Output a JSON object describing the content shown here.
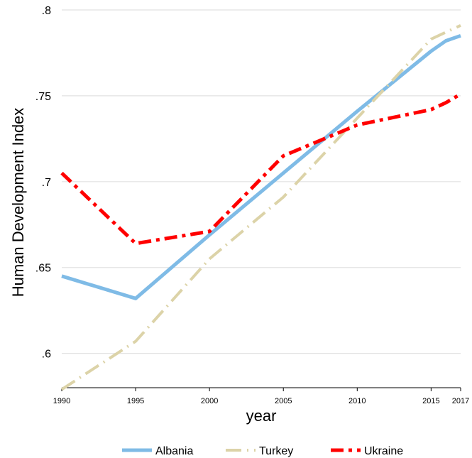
{
  "chart_data": {
    "type": "line",
    "title": "",
    "xlabel": "year",
    "ylabel": "Human Development Index",
    "x": [
      1990,
      1995,
      2000,
      2005,
      2010,
      2015,
      2016,
      2017
    ],
    "xticks": [
      "1990",
      "1995",
      "2000",
      "2005",
      "2010",
      "2015",
      "2017"
    ],
    "yticks": [
      ".6",
      ".65",
      ".7",
      ".75",
      ".8"
    ],
    "xlim": [
      1990,
      2017
    ],
    "ylim": [
      0.58,
      0.8
    ],
    "grid": "horizontal",
    "legend_position": "bottom",
    "series": [
      {
        "name": "Albania",
        "color": "#7fbbe6",
        "dash": "solid",
        "values": [
          0.645,
          0.632,
          0.669,
          0.705,
          0.741,
          0.776,
          0.782,
          0.785
        ]
      },
      {
        "name": "Turkey",
        "color": "#dcd3a8",
        "dash": "dash-dot",
        "values": [
          0.579,
          0.607,
          0.655,
          0.691,
          0.737,
          0.783,
          0.787,
          0.791
        ]
      },
      {
        "name": "Ukraine",
        "color": "#ff0000",
        "dash": "dash-dot",
        "values": [
          0.705,
          0.664,
          0.671,
          0.715,
          0.733,
          0.742,
          0.746,
          0.751
        ]
      }
    ]
  }
}
